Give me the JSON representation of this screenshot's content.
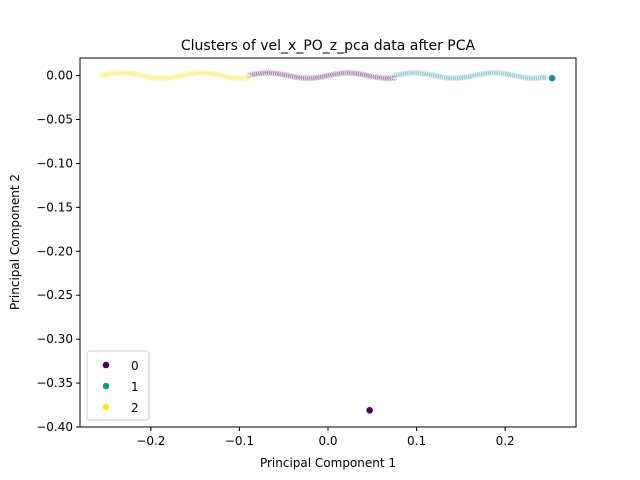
{
  "chart_data": {
    "type": "scatter",
    "title": "Clusters of vel_x_PO_z_pca data after PCA",
    "xlabel": "Principal Component 1",
    "ylabel": "Principal Component 2",
    "xlim": [
      -0.28,
      0.28
    ],
    "ylim": [
      -0.4,
      0.02
    ],
    "xticks": [
      -0.2,
      -0.1,
      0.0,
      0.1,
      0.2
    ],
    "xtick_labels": [
      "−0.2",
      "−0.1",
      "0.0",
      "0.1",
      "0.2"
    ],
    "yticks": [
      0.0,
      -0.05,
      -0.1,
      -0.15,
      -0.2,
      -0.25,
      -0.3,
      -0.35,
      -0.4
    ],
    "ytick_labels": [
      "0.00",
      "−0.05",
      "−0.10",
      "−0.15",
      "−0.20",
      "−0.25",
      "−0.30",
      "−0.35",
      "−0.40"
    ],
    "grid": false,
    "legend": {
      "placement": "lower-left",
      "entries": [
        {
          "label": "0",
          "color": "#440154"
        },
        {
          "label": "1",
          "color": "#21918c"
        },
        {
          "label": "2",
          "color": "#fde725"
        }
      ]
    },
    "series": [
      {
        "name": "0",
        "color": "#440154",
        "wave": {
          "x_start": -0.09,
          "x_end": 0.075,
          "amplitude": 0.003,
          "period": 0.09,
          "offset": 0.0,
          "count": 70,
          "alpha": 0.18
        },
        "points": [
          {
            "x": 0.047,
            "y": -0.381,
            "alpha": 1.0
          }
        ]
      },
      {
        "name": "1",
        "color": "#21918c",
        "wave": {
          "x_start": 0.075,
          "x_end": 0.245,
          "amplitude": 0.003,
          "period": 0.09,
          "offset": 0.0,
          "count": 70,
          "alpha": 0.18
        },
        "points": [
          {
            "x": 0.253,
            "y": -0.003,
            "alpha": 1.0
          }
        ]
      },
      {
        "name": "2",
        "color": "#fde725",
        "wave": {
          "x_start": -0.255,
          "x_end": -0.09,
          "amplitude": 0.003,
          "period": 0.09,
          "offset": 0.0,
          "count": 70,
          "alpha": 0.25
        },
        "points": []
      }
    ]
  }
}
